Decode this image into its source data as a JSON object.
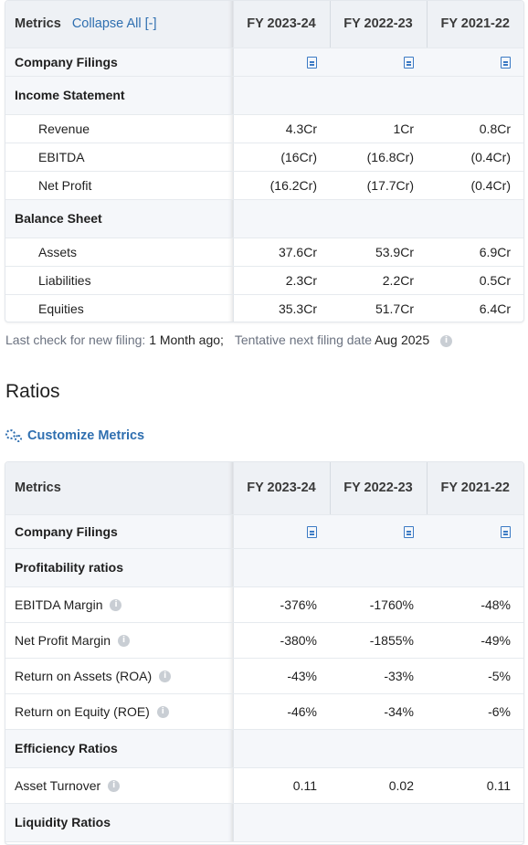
{
  "financials": {
    "metrics_label": "Metrics",
    "collapse_label": "Collapse All [-]",
    "years": [
      "FY 2023-24",
      "FY 2022-23",
      "FY 2021-22"
    ],
    "filings_label": "Company Filings",
    "income_statement": {
      "title": "Income Statement",
      "rows": [
        {
          "label": "Revenue",
          "values": [
            "4.3Cr",
            "1Cr",
            "0.8Cr"
          ]
        },
        {
          "label": "EBITDA",
          "values": [
            "(16Cr)",
            "(16.8Cr)",
            "(0.4Cr)"
          ]
        },
        {
          "label": "Net Profit",
          "values": [
            "(16.2Cr)",
            "(17.7Cr)",
            "(0.4Cr)"
          ]
        }
      ]
    },
    "balance_sheet": {
      "title": "Balance Sheet",
      "rows": [
        {
          "label": "Assets",
          "values": [
            "37.6Cr",
            "53.9Cr",
            "6.9Cr"
          ]
        },
        {
          "label": "Liabilities",
          "values": [
            "2.3Cr",
            "2.2Cr",
            "0.5Cr"
          ]
        },
        {
          "label": "Equities",
          "values": [
            "35.3Cr",
            "51.7Cr",
            "6.4Cr"
          ]
        }
      ]
    },
    "last_check_label": "Last check for new filing:",
    "last_check_value": "1 Month ago;",
    "next_filing_label": "Tentative next filing date",
    "next_filing_value": "Aug 2025"
  },
  "ratios": {
    "title": "Ratios",
    "customize_label": "Customize Metrics",
    "metrics_label": "Metrics",
    "years": [
      "FY 2023-24",
      "FY 2022-23",
      "FY 2021-22"
    ],
    "filings_label": "Company Filings",
    "profitability": {
      "title": "Profitability ratios",
      "rows": [
        {
          "label": "EBITDA Margin",
          "values": [
            "-376%",
            "-1760%",
            "-48%"
          ]
        },
        {
          "label": "Net Profit Margin",
          "values": [
            "-380%",
            "-1855%",
            "-49%"
          ]
        },
        {
          "label": "Return on Assets (ROA)",
          "values": [
            "-43%",
            "-33%",
            "-5%"
          ]
        },
        {
          "label": "Return on Equity (ROE)",
          "values": [
            "-46%",
            "-34%",
            "-6%"
          ]
        }
      ]
    },
    "efficiency": {
      "title": "Efficiency Ratios",
      "rows": [
        {
          "label": "Asset Turnover",
          "values": [
            "0.11",
            "0.02",
            "0.11"
          ]
        }
      ]
    },
    "liquidity": {
      "title": "Liquidity Ratios"
    }
  },
  "icons": {
    "filing": "document-icon",
    "info": "info-icon",
    "customize": "gears-icon"
  },
  "colors": {
    "link": "#2f6fb0",
    "header_bg": "#eef1f5",
    "section_bg": "#f5f7fa"
  }
}
